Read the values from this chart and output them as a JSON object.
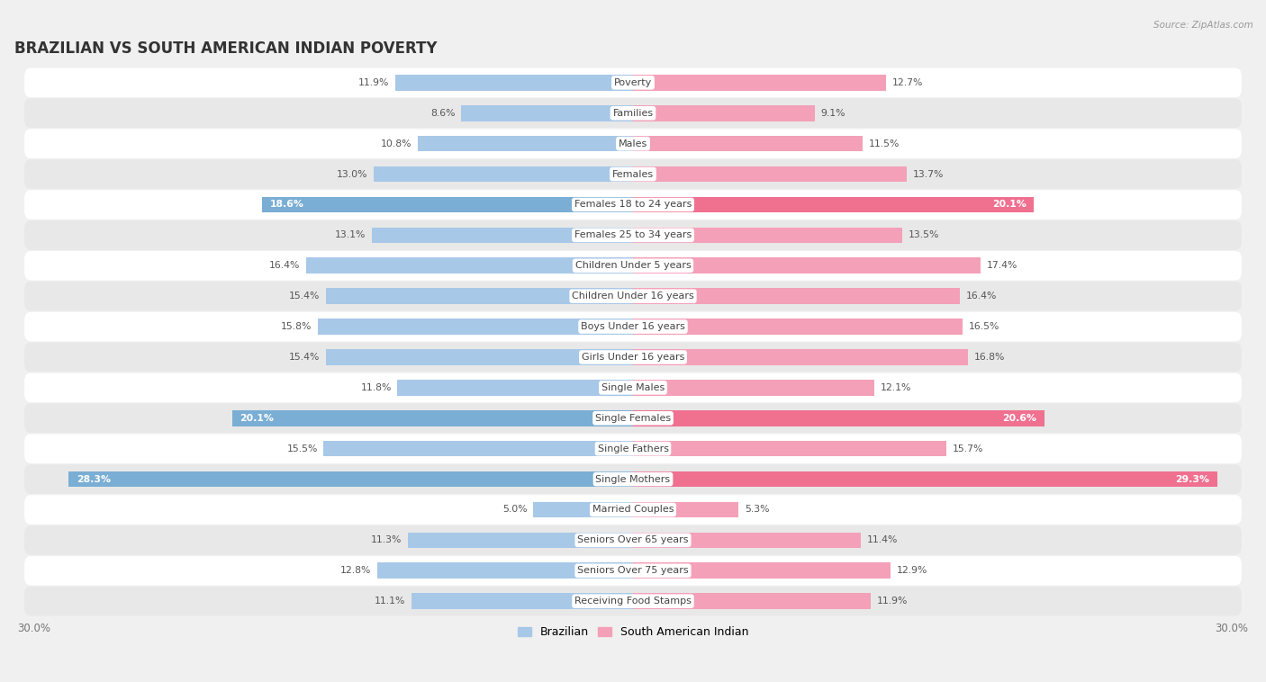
{
  "title": "BRAZILIAN VS SOUTH AMERICAN INDIAN POVERTY",
  "source": "Source: ZipAtlas.com",
  "categories": [
    "Poverty",
    "Families",
    "Males",
    "Females",
    "Females 18 to 24 years",
    "Females 25 to 34 years",
    "Children Under 5 years",
    "Children Under 16 years",
    "Boys Under 16 years",
    "Girls Under 16 years",
    "Single Males",
    "Single Females",
    "Single Fathers",
    "Single Mothers",
    "Married Couples",
    "Seniors Over 65 years",
    "Seniors Over 75 years",
    "Receiving Food Stamps"
  ],
  "brazilian": [
    11.9,
    8.6,
    10.8,
    13.0,
    18.6,
    13.1,
    16.4,
    15.4,
    15.8,
    15.4,
    11.8,
    20.1,
    15.5,
    28.3,
    5.0,
    11.3,
    12.8,
    11.1
  ],
  "south_american_indian": [
    12.7,
    9.1,
    11.5,
    13.7,
    20.1,
    13.5,
    17.4,
    16.4,
    16.5,
    16.8,
    12.1,
    20.6,
    15.7,
    29.3,
    5.3,
    11.4,
    12.9,
    11.9
  ],
  "brazilian_color": "#a8c8e8",
  "south_american_indian_color": "#f4a0b8",
  "highlight_brazilian_color": "#7aaed4",
  "highlight_south_american_indian_color": "#f07090",
  "highlight_rows": [
    4,
    11,
    13
  ],
  "background_color": "#f0f0f0",
  "row_bg_white": "#ffffff",
  "row_bg_gray": "#e8e8e8",
  "axis_max": 30.0,
  "legend_labels": [
    "Brazilian",
    "South American Indian"
  ],
  "bar_height": 0.52,
  "title_fontsize": 12,
  "label_fontsize": 8.0,
  "value_fontsize": 7.8,
  "value_color_normal": "#555555",
  "value_color_highlight": "#ffffff"
}
